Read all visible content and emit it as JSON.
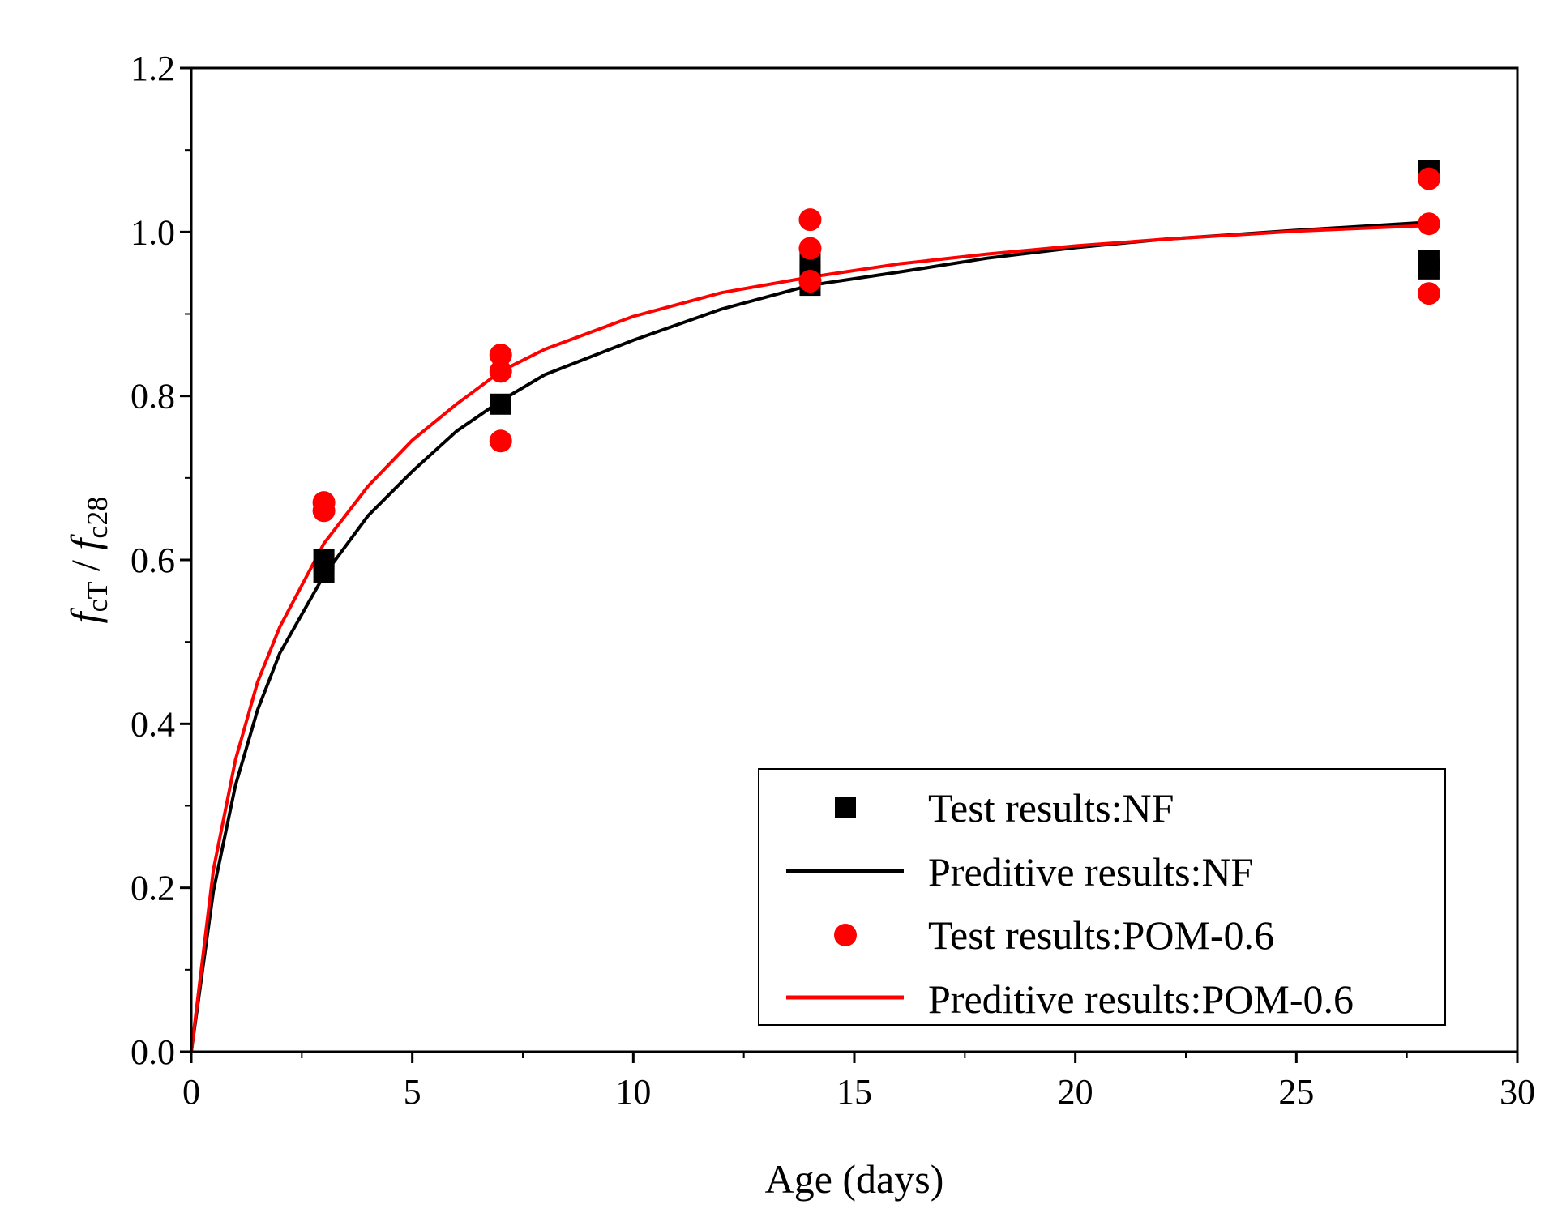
{
  "chart_data": {
    "type": "scatter",
    "title": "",
    "xlabel": "Age (days)",
    "ylabel": {
      "num_main": "f",
      "num_sub": "cT",
      "sep": " / ",
      "den_main": "f",
      "den_sub": "c28"
    },
    "xlim": [
      0,
      30
    ],
    "ylim": [
      0,
      1.2
    ],
    "x_ticks": [
      0,
      5,
      10,
      15,
      20,
      25,
      30
    ],
    "x_tick_labels": [
      "0",
      "5",
      "10",
      "15",
      "20",
      "25",
      "30"
    ],
    "y_ticks": [
      0,
      0.2,
      0.4,
      0.6,
      0.8,
      1.0,
      1.2
    ],
    "y_tick_labels": [
      "0.0",
      "0.2",
      "0.4",
      "0.6",
      "0.8",
      "1.0",
      "1.2"
    ],
    "grid": false,
    "legend_position": "bottom-right",
    "series": [
      {
        "name": "Test results:NF",
        "kind": "scatter",
        "marker": "square",
        "color": "#000000",
        "points": [
          {
            "x": 3,
            "y": 0.6
          },
          {
            "x": 3,
            "y": 0.585
          },
          {
            "x": 7,
            "y": 0.79
          },
          {
            "x": 14,
            "y": 0.965
          },
          {
            "x": 14,
            "y": 0.95
          },
          {
            "x": 14,
            "y": 0.935
          },
          {
            "x": 28,
            "y": 1.075
          },
          {
            "x": 28,
            "y": 0.965
          },
          {
            "x": 28,
            "y": 0.955
          }
        ]
      },
      {
        "name": "Preditive results:NF",
        "kind": "line",
        "color": "#000000",
        "points": [
          {
            "x": 0,
            "y": 0
          },
          {
            "x": 0.5,
            "y": 0.196
          },
          {
            "x": 1,
            "y": 0.325
          },
          {
            "x": 1.5,
            "y": 0.417
          },
          {
            "x": 2,
            "y": 0.486
          },
          {
            "x": 3,
            "y": 0.581
          },
          {
            "x": 4,
            "y": 0.654
          },
          {
            "x": 5,
            "y": 0.708
          },
          {
            "x": 6,
            "y": 0.757
          },
          {
            "x": 7,
            "y": 0.794
          },
          {
            "x": 8,
            "y": 0.826
          },
          {
            "x": 10,
            "y": 0.868
          },
          {
            "x": 12,
            "y": 0.906
          },
          {
            "x": 14,
            "y": 0.935
          },
          {
            "x": 16,
            "y": 0.951
          },
          {
            "x": 18,
            "y": 0.968
          },
          {
            "x": 20,
            "y": 0.981
          },
          {
            "x": 22,
            "y": 0.991
          },
          {
            "x": 25,
            "y": 1.002
          },
          {
            "x": 28,
            "y": 1.012
          }
        ]
      },
      {
        "name": "Test results:POM-0.6",
        "kind": "scatter",
        "marker": "circle",
        "color": "#ff0000",
        "points": [
          {
            "x": 3,
            "y": 0.67
          },
          {
            "x": 3,
            "y": 0.66
          },
          {
            "x": 7,
            "y": 0.85
          },
          {
            "x": 7,
            "y": 0.83
          },
          {
            "x": 7,
            "y": 0.745
          },
          {
            "x": 14,
            "y": 1.015
          },
          {
            "x": 14,
            "y": 0.98
          },
          {
            "x": 14,
            "y": 0.94
          },
          {
            "x": 28,
            "y": 1.065
          },
          {
            "x": 28,
            "y": 1.01
          },
          {
            "x": 28,
            "y": 0.925
          }
        ]
      },
      {
        "name": "Preditive results:POM-0.6",
        "kind": "line",
        "color": "#ff0000",
        "points": [
          {
            "x": 0,
            "y": 0
          },
          {
            "x": 0.5,
            "y": 0.222
          },
          {
            "x": 1,
            "y": 0.356
          },
          {
            "x": 1.5,
            "y": 0.451
          },
          {
            "x": 2,
            "y": 0.518
          },
          {
            "x": 3,
            "y": 0.62
          },
          {
            "x": 4,
            "y": 0.69
          },
          {
            "x": 5,
            "y": 0.746
          },
          {
            "x": 6,
            "y": 0.79
          },
          {
            "x": 7,
            "y": 0.83
          },
          {
            "x": 8,
            "y": 0.857
          },
          {
            "x": 10,
            "y": 0.897
          },
          {
            "x": 12,
            "y": 0.926
          },
          {
            "x": 14,
            "y": 0.945
          },
          {
            "x": 16,
            "y": 0.961
          },
          {
            "x": 18,
            "y": 0.973
          },
          {
            "x": 20,
            "y": 0.983
          },
          {
            "x": 22,
            "y": 0.991
          },
          {
            "x": 25,
            "y": 1.001
          },
          {
            "x": 28,
            "y": 1.008
          }
        ]
      }
    ]
  }
}
